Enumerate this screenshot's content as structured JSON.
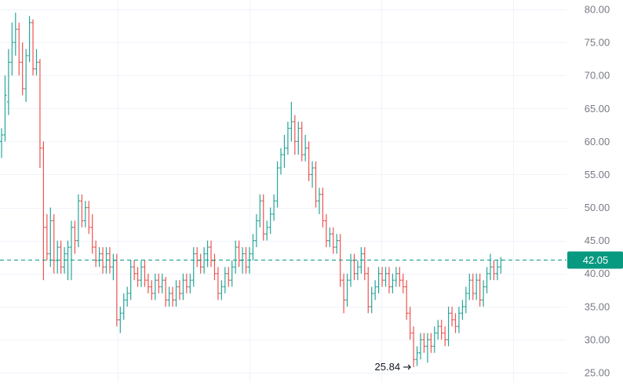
{
  "chart_data": {
    "type": "ohlc",
    "ylim": [
      24,
      81
    ],
    "grid": true,
    "y_ticks": [
      {
        "value": 25,
        "label": "25.00"
      },
      {
        "value": 30,
        "label": "30.00"
      },
      {
        "value": 35,
        "label": "35.00"
      },
      {
        "value": 40,
        "label": "40.00"
      },
      {
        "value": 45,
        "label": "45.00"
      },
      {
        "value": 50,
        "label": "50.00"
      },
      {
        "value": 55,
        "label": "55.00"
      },
      {
        "value": 60,
        "label": "60.00"
      },
      {
        "value": 65,
        "label": "65.00"
      },
      {
        "value": 70,
        "label": "70.00"
      },
      {
        "value": 75,
        "label": "75.00"
      },
      {
        "value": 80,
        "label": "80.00"
      }
    ],
    "last_price": {
      "value": 42.05,
      "label": "42.05"
    },
    "low_marker": {
      "value": 25.84,
      "label": "25.84"
    },
    "colors": {
      "up": "#26a69a",
      "down": "#ef5350",
      "axis_text": "#787b86",
      "grid": "#f0f3fa",
      "last_price": "#089981"
    },
    "bars": [
      [
        60.0,
        62.0,
        57.5,
        61.0
      ],
      [
        61.0,
        70.0,
        60.0,
        67.0
      ],
      [
        66.0,
        74.0,
        64.0,
        72.0
      ],
      [
        72.0,
        78.0,
        70.0,
        75.0
      ],
      [
        75.0,
        79.5,
        73.0,
        77.0
      ],
      [
        77.0,
        78.0,
        70.0,
        72.0
      ],
      [
        72.0,
        75.0,
        67.0,
        68.0
      ],
      [
        68.0,
        74.0,
        66.0,
        73.0
      ],
      [
        73.0,
        79.0,
        72.0,
        78.0
      ],
      [
        78.0,
        78.5,
        70.0,
        71.0
      ],
      [
        71.0,
        74.0,
        70.0,
        72.0
      ],
      [
        72.0,
        72.5,
        56.0,
        59.0
      ],
      [
        59.0,
        60.0,
        39.0,
        47.0
      ],
      [
        47.0,
        49.0,
        42.0,
        43.0
      ],
      [
        43.0,
        50.0,
        41.0,
        48.0
      ],
      [
        48.0,
        49.0,
        40.0,
        42.0
      ],
      [
        42.0,
        45.0,
        40.0,
        44.0
      ],
      [
        44.0,
        45.0,
        40.0,
        41.0
      ],
      [
        41.0,
        44.0,
        40.0,
        43.0
      ],
      [
        43.0,
        45.0,
        39.0,
        44.0
      ],
      [
        44.0,
        48.0,
        39.0,
        47.0
      ],
      [
        47.0,
        48.0,
        43.0,
        45.0
      ],
      [
        45.0,
        52.0,
        44.0,
        51.0
      ],
      [
        51.0,
        52.0,
        47.0,
        48.0
      ],
      [
        48.0,
        51.0,
        47.0,
        50.0
      ],
      [
        50.0,
        51.0,
        46.0,
        47.0
      ],
      [
        47.0,
        49.0,
        43.0,
        44.0
      ],
      [
        44.0,
        45.0,
        41.0,
        42.0
      ],
      [
        42.0,
        44.0,
        41.0,
        43.0
      ],
      [
        43.0,
        44.0,
        40.0,
        41.0
      ],
      [
        41.0,
        44.0,
        40.0,
        43.0
      ],
      [
        43.0,
        44.0,
        40.0,
        41.0
      ],
      [
        41.0,
        43.0,
        39.0,
        42.0
      ],
      [
        42.0,
        43.0,
        32.0,
        33.0
      ],
      [
        33.0,
        35.0,
        31.0,
        34.0
      ],
      [
        34.0,
        37.0,
        33.0,
        36.0
      ],
      [
        36.0,
        38.0,
        35.0,
        37.0
      ],
      [
        37.0,
        42.0,
        36.0,
        41.0
      ],
      [
        41.0,
        42.0,
        39.0,
        40.0
      ],
      [
        40.0,
        41.0,
        38.0,
        39.0
      ],
      [
        39.0,
        42.0,
        38.0,
        41.0
      ],
      [
        41.0,
        42.0,
        38.0,
        39.0
      ],
      [
        39.0,
        40.0,
        37.0,
        38.0
      ],
      [
        38.0,
        39.0,
        36.0,
        37.0
      ],
      [
        37.0,
        40.0,
        36.0,
        39.0
      ],
      [
        39.0,
        40.0,
        37.0,
        38.0
      ],
      [
        38.0,
        40.0,
        37.0,
        39.0
      ],
      [
        39.0,
        39.5,
        35.0,
        36.0
      ],
      [
        36.0,
        38.0,
        35.0,
        37.0
      ],
      [
        37.0,
        38.0,
        35.0,
        36.0
      ],
      [
        36.0,
        39.0,
        35.0,
        38.0
      ],
      [
        38.0,
        39.0,
        36.0,
        37.0
      ],
      [
        37.0,
        40.0,
        36.0,
        39.0
      ],
      [
        39.0,
        40.0,
        37.0,
        38.0
      ],
      [
        38.0,
        40.0,
        37.0,
        39.0
      ],
      [
        39.0,
        44.0,
        38.0,
        43.0
      ],
      [
        43.0,
        44.0,
        41.0,
        42.0
      ],
      [
        42.0,
        43.0,
        40.0,
        41.0
      ],
      [
        41.0,
        44.0,
        40.0,
        43.0
      ],
      [
        43.0,
        45.0,
        41.0,
        44.0
      ],
      [
        44.0,
        45.0,
        41.0,
        42.0
      ],
      [
        42.0,
        43.0,
        39.0,
        40.0
      ],
      [
        40.0,
        41.0,
        36.0,
        37.0
      ],
      [
        37.0,
        39.0,
        36.0,
        38.0
      ],
      [
        38.0,
        41.0,
        37.0,
        40.0
      ],
      [
        40.0,
        41.0,
        38.0,
        39.0
      ],
      [
        39.0,
        42.0,
        38.0,
        41.0
      ],
      [
        41.0,
        45.0,
        40.0,
        44.0
      ],
      [
        44.0,
        45.0,
        41.0,
        42.0
      ],
      [
        42.0,
        44.0,
        40.0,
        43.0
      ],
      [
        43.0,
        44.0,
        40.0,
        41.0
      ],
      [
        41.0,
        44.0,
        40.0,
        43.0
      ],
      [
        43.0,
        46.0,
        42.0,
        45.0
      ],
      [
        45.0,
        49.0,
        44.0,
        48.0
      ],
      [
        48.0,
        52.0,
        47.0,
        51.0
      ],
      [
        51.0,
        52.0,
        45.0,
        46.0
      ],
      [
        46.0,
        48.0,
        45.0,
        47.0
      ],
      [
        47.0,
        50.0,
        46.0,
        49.0
      ],
      [
        49.0,
        52.0,
        48.0,
        51.0
      ],
      [
        51.0,
        57.0,
        50.0,
        56.0
      ],
      [
        56.0,
        59.0,
        55.0,
        58.0
      ],
      [
        58.0,
        61.0,
        56.0,
        59.0
      ],
      [
        59.0,
        63.0,
        58.0,
        62.0
      ],
      [
        62.0,
        66.0,
        60.0,
        63.0
      ],
      [
        63.0,
        64.0,
        58.0,
        60.0
      ],
      [
        60.0,
        63.0,
        58.0,
        62.0
      ],
      [
        62.0,
        63.0,
        57.0,
        58.0
      ],
      [
        58.0,
        61.0,
        57.0,
        59.0
      ],
      [
        59.0,
        60.0,
        54.0,
        55.0
      ],
      [
        55.0,
        57.0,
        53.0,
        56.0
      ],
      [
        56.0,
        57.0,
        50.0,
        51.0
      ],
      [
        51.0,
        53.0,
        49.0,
        52.0
      ],
      [
        52.0,
        53.0,
        47.0,
        48.0
      ],
      [
        48.0,
        49.0,
        44.0,
        45.0
      ],
      [
        45.0,
        47.0,
        44.0,
        46.0
      ],
      [
        46.0,
        47.0,
        43.0,
        44.0
      ],
      [
        44.0,
        46.0,
        43.0,
        45.0
      ],
      [
        45.0,
        46.0,
        38.0,
        39.0
      ],
      [
        39.0,
        40.0,
        34.0,
        36.0
      ],
      [
        36.0,
        40.0,
        35.0,
        39.0
      ],
      [
        39.0,
        43.0,
        38.0,
        42.0
      ],
      [
        42.0,
        43.0,
        39.0,
        40.0
      ],
      [
        40.0,
        42.0,
        39.0,
        41.0
      ],
      [
        41.0,
        44.0,
        40.0,
        43.0
      ],
      [
        43.0,
        44.0,
        39.0,
        40.0
      ],
      [
        40.0,
        41.0,
        34.0,
        35.0
      ],
      [
        35.0,
        38.0,
        34.0,
        37.0
      ],
      [
        37.0,
        39.0,
        36.0,
        38.0
      ],
      [
        38.0,
        41.0,
        37.0,
        40.0
      ],
      [
        40.0,
        41.0,
        38.0,
        39.0
      ],
      [
        39.0,
        41.0,
        38.0,
        40.0
      ],
      [
        40.0,
        41.0,
        37.0,
        38.0
      ],
      [
        38.0,
        40.0,
        37.0,
        39.0
      ],
      [
        39.0,
        41.0,
        38.0,
        40.0
      ],
      [
        40.0,
        41.0,
        38.0,
        39.0
      ],
      [
        39.0,
        40.0,
        37.0,
        38.0
      ],
      [
        38.0,
        39.0,
        33.0,
        34.0
      ],
      [
        34.0,
        35.0,
        30.0,
        31.0
      ],
      [
        31.0,
        32.0,
        25.84,
        27.0
      ],
      [
        27.0,
        29.0,
        26.0,
        28.0
      ],
      [
        28.0,
        31.0,
        27.0,
        30.0
      ],
      [
        30.0,
        31.0,
        28.0,
        29.0
      ],
      [
        29.0,
        31.0,
        26.5,
        30.0
      ],
      [
        30.0,
        31.0,
        28.0,
        29.0
      ],
      [
        29.0,
        32.0,
        28.0,
        31.0
      ],
      [
        31.0,
        33.0,
        30.0,
        32.0
      ],
      [
        32.0,
        33.0,
        30.0,
        31.0
      ],
      [
        31.0,
        32.0,
        29.0,
        30.0
      ],
      [
        30.0,
        35.0,
        29.0,
        34.0
      ],
      [
        34.0,
        35.0,
        32.0,
        33.0
      ],
      [
        33.0,
        34.0,
        31.0,
        32.0
      ],
      [
        32.0,
        35.0,
        31.0,
        34.0
      ],
      [
        34.0,
        36.0,
        33.0,
        35.0
      ],
      [
        35.0,
        38.0,
        34.0,
        37.0
      ],
      [
        37.0,
        40.0,
        36.0,
        39.0
      ],
      [
        39.0,
        40.0,
        36.0,
        37.0
      ],
      [
        37.0,
        40.0,
        36.0,
        39.0
      ],
      [
        39.0,
        40.0,
        35.0,
        36.0
      ],
      [
        36.0,
        39.0,
        35.0,
        38.0
      ],
      [
        38.0,
        41.0,
        37.0,
        40.0
      ],
      [
        40.0,
        43.0,
        39.0,
        41.0
      ],
      [
        41.0,
        42.0,
        39.0,
        40.0
      ],
      [
        40.0,
        42.0,
        39.0,
        41.0
      ],
      [
        41.0,
        42.5,
        40.0,
        42.05
      ]
    ]
  }
}
